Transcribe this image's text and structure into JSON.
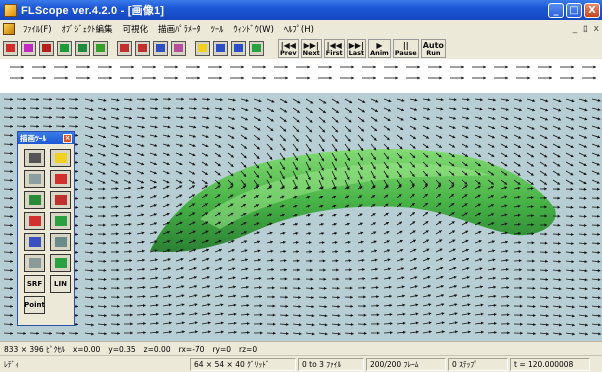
{
  "window": {
    "title": "FLScope ver.4.2.0 - [画像1]",
    "controls": {
      "minimize": "_",
      "maximize": "□",
      "close": "X"
    }
  },
  "menu": {
    "items": [
      "ﾌｧｲﾙ(F)",
      "ｵﾌﾞｼﾞｪｸﾄ編集",
      "可視化",
      "描画ﾊﾟﾗﾒｰﾀ",
      "ﾂｰﾙ",
      "ｳｨﾝﾄﾞｳ(W)",
      "ﾍﾙﾌﾟ(H)"
    ],
    "mdi_controls": [
      "_",
      "ﾛ",
      "x"
    ]
  },
  "toolbar": {
    "color_buttons": [
      "#d12b2b",
      "#c02cc0",
      "#b32020",
      "#1b9b3a",
      "#1f8a3e",
      "#36a02a",
      "#c03030",
      "#c03030",
      "#3050c0",
      "#b84e9d",
      "#f0d020",
      "#2a50c8",
      "#2a50c8",
      "#2aa040"
    ],
    "nav": [
      {
        "glyph": "|◀◀",
        "label": "Prev"
      },
      {
        "glyph": "▶▶|",
        "label": "Next"
      },
      {
        "glyph": "|◀◀",
        "label": "First"
      },
      {
        "glyph": "▶▶|",
        "label": "Last"
      },
      {
        "glyph": "▶",
        "label": "Anim"
      },
      {
        "glyph": "||",
        "label": "Pause"
      },
      {
        "glyph": "Auto",
        "label": "Run"
      }
    ]
  },
  "palette": {
    "title": "描画ﾂｰﾙ",
    "buttons": [
      {
        "name": "grid-tool",
        "color": "#555555",
        "label": ""
      },
      {
        "name": "box-tool",
        "color": "#f0d020",
        "label": ""
      },
      {
        "name": "vector-tool",
        "color": "#8aa0a0",
        "label": ""
      },
      {
        "name": "sphere-tool",
        "color": "#d03030",
        "label": ""
      },
      {
        "name": "contour-tool",
        "color": "#2a8a3a",
        "label": ""
      },
      {
        "name": "dot-tool",
        "color": "#c03030",
        "label": ""
      },
      {
        "name": "point-tool",
        "color": "#d03030",
        "label": ""
      },
      {
        "name": "green-surface-tool",
        "color": "#2aa040",
        "label": ""
      },
      {
        "name": "blue-surface-tool",
        "color": "#3a50c0",
        "label": ""
      },
      {
        "name": "stream-tool",
        "color": "#6a8a8a",
        "label": ""
      },
      {
        "name": "slice-tool",
        "color": "#8a9a9a",
        "label": ""
      },
      {
        "name": "iso-tool",
        "color": "#2aa040",
        "label": ""
      },
      {
        "name": "srf-button",
        "color": "#e8e4d4",
        "label": "SRF"
      },
      {
        "name": "lin-button",
        "color": "#e8e4d4",
        "label": "LIN"
      },
      {
        "name": "point-button",
        "color": "#e8e4d4",
        "label": "Point"
      }
    ]
  },
  "status_line1": {
    "size": "833 × 396 ﾋﾟｸｾﾙ",
    "x": "x=0.00",
    "y": "y=0.35",
    "z": "z=0.00",
    "rx": "rx=-70",
    "ry": "ry=0",
    "rz": "rz=0"
  },
  "status_line2": {
    "ready": "ﾚﾃﾞｨ",
    "grid": "64 × 54 × 40 ｸﾞﾘｯﾄﾞ",
    "file": "0 to 3 ﾌｧｲﾙ",
    "frames": "200/200 ﾌﾚｰﾑ",
    "step": "0 ｽﾃｯﾌﾟ",
    "time": "t = 120.000008"
  },
  "colors": {
    "scene_background": "#b7cfd4",
    "surface_green": "#3fb23b",
    "arrow": "#111111"
  }
}
